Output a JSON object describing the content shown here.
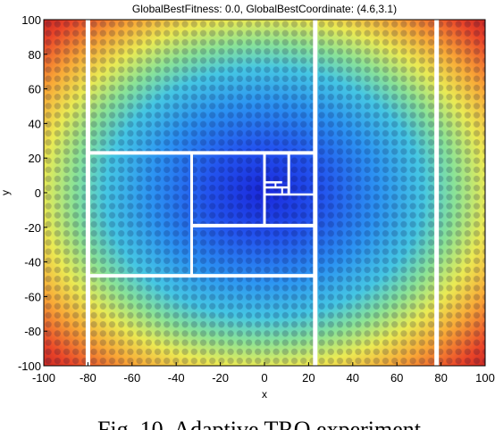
{
  "figure": {
    "caption": "Fig. 10. Adaptive TRO experiment"
  },
  "chart_data": {
    "type": "heatmap",
    "title": "GlobalBestFitness: 0.0, GlobalBestCoordinate: (4.6,3.1)",
    "xlabel": "x",
    "ylabel": "y",
    "xlim": [
      -100,
      100
    ],
    "ylim": [
      -100,
      100
    ],
    "xticks": [
      -100,
      -80,
      -60,
      -40,
      -20,
      0,
      20,
      40,
      60,
      80,
      100
    ],
    "yticks": [
      100,
      80,
      60,
      40,
      20,
      0,
      -20,
      -40,
      -60,
      -80,
      -100
    ],
    "colormap": "jet",
    "surface": "multimodal bowl (Rastrigin-like), minimum near origin",
    "colors": {
      "low": "#0000c8",
      "high": "#c80000",
      "partition_lines": "#ffffff"
    },
    "partition_vertical_x": [
      -80,
      23,
      78,
      -33,
      0,
      23,
      11,
      5,
      8
    ],
    "partition_segments": [
      {
        "x1": -80,
        "y1": 23,
        "x2": 23,
        "y2": 23
      },
      {
        "x1": -80,
        "y1": -48,
        "x2": 23,
        "y2": -48
      },
      {
        "x1": -33,
        "y1": -19,
        "x2": 23,
        "y2": -19
      },
      {
        "x1": 0,
        "y1": -1,
        "x2": 23,
        "y2": -1
      },
      {
        "x1": 0,
        "y1": 6,
        "x2": 8,
        "y2": 6
      },
      {
        "x1": 0,
        "y1": 3,
        "x2": 11,
        "y2": 3
      }
    ]
  }
}
